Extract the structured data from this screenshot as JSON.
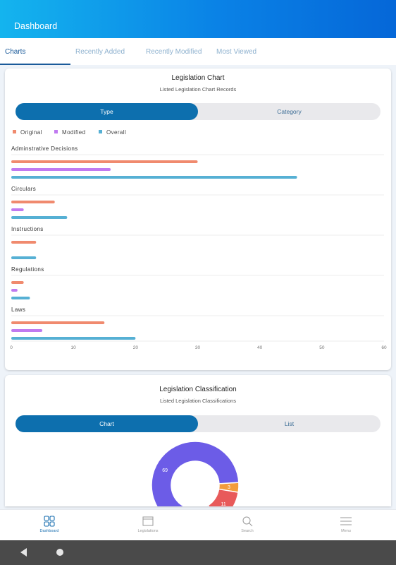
{
  "header": {
    "title": "Dashboard"
  },
  "tabs": [
    {
      "label": "Charts",
      "active": true
    },
    {
      "label": "Recently Added",
      "active": false
    },
    {
      "label": "Recently Modified",
      "active": false
    },
    {
      "label": "Most Viewed",
      "active": false
    }
  ],
  "legislation_chart": {
    "title": "Legislation Chart",
    "subtitle": "Listed Legislation Chart Records",
    "toggle": {
      "selected": "Type",
      "other": "Category"
    },
    "legend": [
      {
        "label": "Original",
        "color": "#f08a6e"
      },
      {
        "label": "Modified",
        "color": "#c07af0"
      },
      {
        "label": "Overall",
        "color": "#56b0d4"
      }
    ]
  },
  "classification": {
    "title": "Legislation Classification",
    "subtitle": "Listed Legislation Classifications",
    "toggle": {
      "selected": "Chart",
      "other": "List"
    },
    "donut_labels": [
      "69",
      "3",
      "11"
    ]
  },
  "chart_data": [
    {
      "type": "bar",
      "orientation": "horizontal",
      "categories": [
        "Adminstrative Decisions",
        "Circulars",
        "Instructions",
        "Regulations",
        "Laws"
      ],
      "series": [
        {
          "name": "Original",
          "color": "#f08a6e",
          "values": [
            30,
            7,
            4,
            2,
            15
          ]
        },
        {
          "name": "Modified",
          "color": "#c07af0",
          "values": [
            16,
            2,
            0,
            1,
            5
          ]
        },
        {
          "name": "Overall",
          "color": "#56b0d4",
          "values": [
            46,
            9,
            4,
            3,
            20
          ]
        }
      ],
      "xlim": [
        0,
        60
      ],
      "xticks": [
        "0",
        "10",
        "20",
        "30",
        "40",
        "50",
        "60"
      ],
      "legend_position": "top-left"
    },
    {
      "type": "pie",
      "style": "donut",
      "values": [
        69,
        3,
        11
      ],
      "labels": [
        "69",
        "3",
        "11"
      ],
      "colors": [
        "#6c5ce7",
        "#f39c3c",
        "#e85a5a"
      ]
    }
  ],
  "bottom_nav": [
    {
      "label": "Dashboard",
      "icon": "dashboard-grid-icon",
      "active": true
    },
    {
      "label": "Legislations",
      "icon": "book-icon",
      "active": false
    },
    {
      "label": "Search",
      "icon": "search-icon",
      "active": false
    },
    {
      "label": "Menu",
      "icon": "hamburger-menu-icon",
      "active": false
    }
  ],
  "system_bar": {
    "back": "back-icon",
    "home": "home-icon"
  }
}
